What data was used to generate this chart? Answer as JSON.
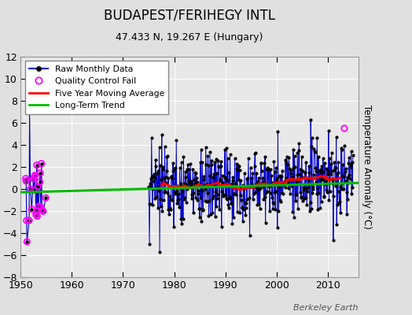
{
  "title": "BUDAPEST/FERIHEGY INTL",
  "subtitle": "47.433 N, 19.267 E (Hungary)",
  "ylabel": "Temperature Anomaly (°C)",
  "credit": "Berkeley Earth",
  "xlim": [
    1950,
    2016
  ],
  "ylim": [
    -8,
    12
  ],
  "yticks": [
    -8,
    -6,
    -4,
    -2,
    0,
    2,
    4,
    6,
    8,
    10,
    12
  ],
  "xticks": [
    1950,
    1960,
    1970,
    1980,
    1990,
    2000,
    2010
  ],
  "fig_bg": "#e0e0e0",
  "plot_bg": "#e8e8e8",
  "raw_color": "#0000cc",
  "qc_color": "#ff00ff",
  "trend_color": "#00bb00",
  "mavg_color": "#ff0000",
  "grid_color": "#ffffff",
  "seed": 17
}
